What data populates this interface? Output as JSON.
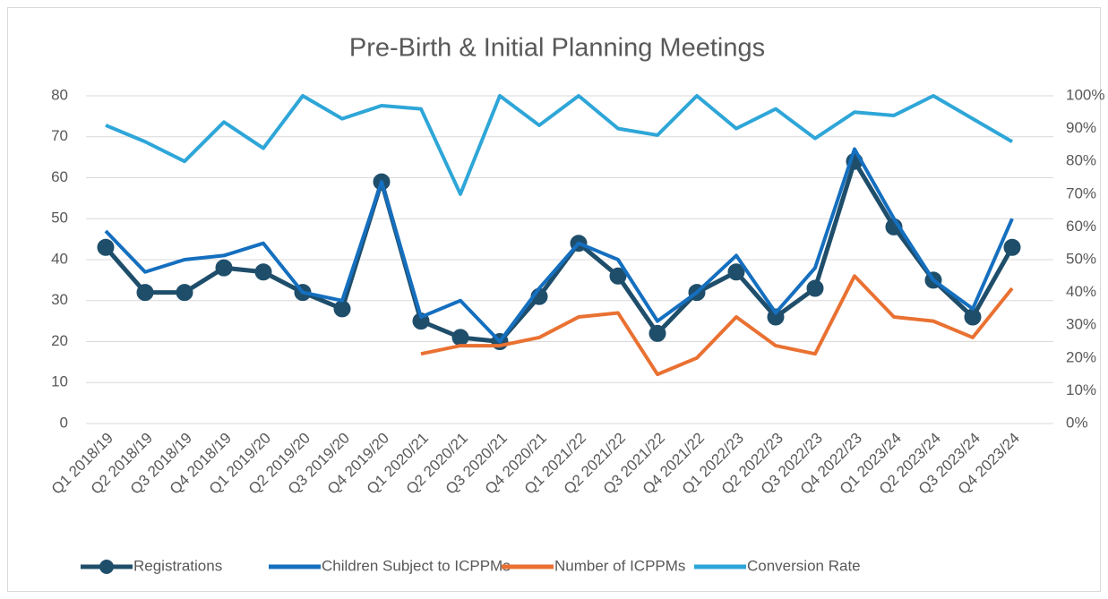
{
  "chart_data": {
    "type": "line",
    "title": "Pre-Birth & Initial Planning Meetings",
    "categories": [
      "Q1 2018/19",
      "Q2 2018/19",
      "Q3 2018/19",
      "Q4 2018/19",
      "Q1 2019/20",
      "Q2 2019/20",
      "Q3 2019/20",
      "Q4 2019/20",
      "Q1 2020/21",
      "Q2 2020/21",
      "Q3 2020/21",
      "Q4 2020/21",
      "Q1 2021/22",
      "Q2 2021/22",
      "Q3 2021/22",
      "Q4 2021/22",
      "Q1 2022/23",
      "Q2 2022/23",
      "Q3 2022/23",
      "Q4 2022/23",
      "Q1 2023/24",
      "Q2 2023/24",
      "Q3 2023/24",
      "Q4 2023/24"
    ],
    "series": [
      {
        "name": "Registrations",
        "color": "#1f4e6b",
        "marker": true,
        "values": [
          43,
          32,
          32,
          38,
          37,
          32,
          28,
          59,
          25,
          21,
          20,
          31,
          44,
          36,
          22,
          32,
          37,
          26,
          33,
          64,
          48,
          35,
          26,
          43
        ]
      },
      {
        "name": "Children Subject to ICPPMs",
        "color": "#156fbf",
        "values": [
          47,
          37,
          40,
          41,
          44,
          32,
          30,
          59,
          26,
          30,
          20,
          33,
          44,
          40,
          25,
          32,
          41,
          27,
          38,
          67,
          50,
          35,
          28,
          50
        ]
      },
      {
        "name": "Number of ICPPMs",
        "color": "#e97132",
        "values": [
          null,
          null,
          null,
          null,
          null,
          null,
          null,
          null,
          17,
          19,
          19,
          21,
          26,
          27,
          12,
          16,
          26,
          19,
          17,
          36,
          26,
          25,
          21,
          33
        ]
      },
      {
        "name": "Conversion Rate",
        "color": "#2ea6d8",
        "axis": "y2",
        "values": [
          91,
          86,
          80,
          92,
          84,
          100,
          93,
          97,
          96,
          70,
          100,
          91,
          100,
          90,
          88,
          100,
          90,
          96,
          87,
          95,
          94,
          100,
          93,
          86
        ]
      }
    ],
    "ylim": [
      0,
      80
    ],
    "yticks": [
      0,
      10,
      20,
      30,
      40,
      50,
      60,
      70,
      80
    ],
    "y2lim": [
      0,
      100
    ],
    "y2ticks": [
      {
        "value": 0,
        "label": "0%"
      },
      {
        "value": 10,
        "label": "10%"
      },
      {
        "value": 20,
        "label": "20%"
      },
      {
        "value": 30,
        "label": "30%"
      },
      {
        "value": 40,
        "label": "40%"
      },
      {
        "value": 50,
        "label": "50%"
      },
      {
        "value": 60,
        "label": "60%"
      },
      {
        "value": 70,
        "label": "70%"
      },
      {
        "value": 80,
        "label": "80%"
      },
      {
        "value": 90,
        "label": "90%"
      },
      {
        "value": 100,
        "label": "100%"
      }
    ],
    "grid": true,
    "legend": "bottom"
  }
}
